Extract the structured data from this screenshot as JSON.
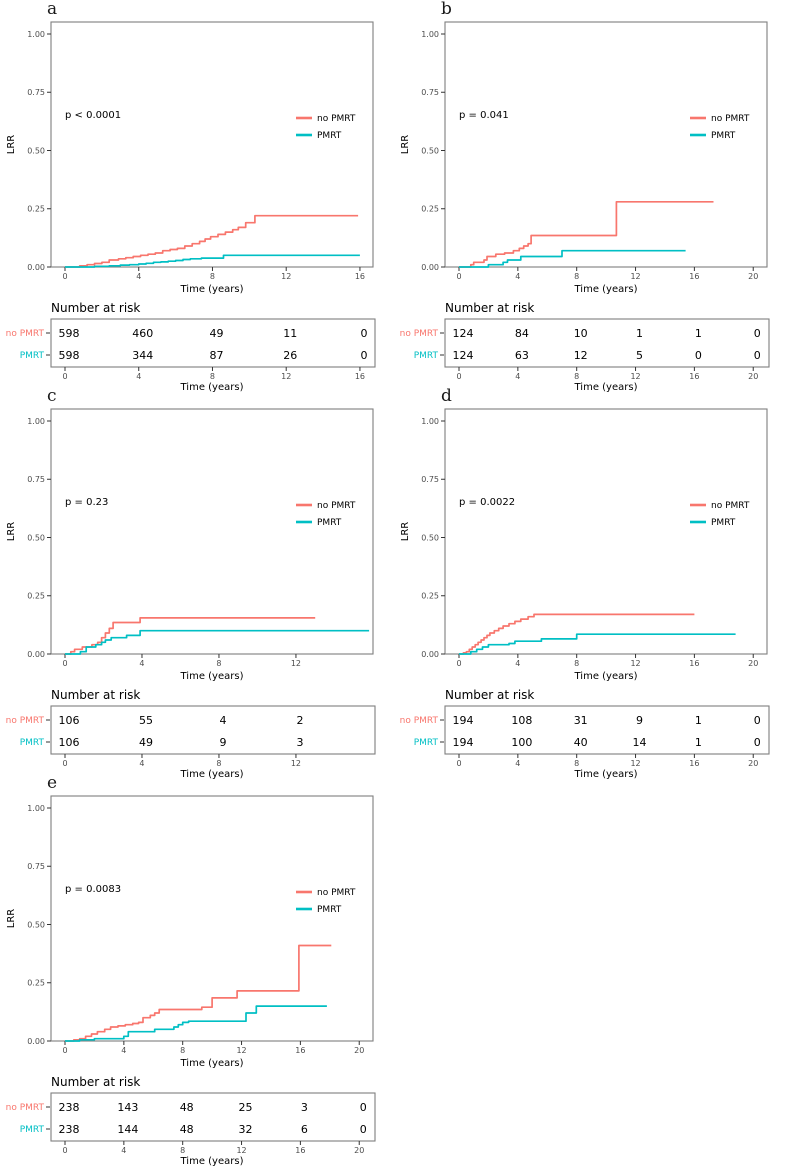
{
  "figure": {
    "description": "Cumulative incidence of locoregional recurrence (LRR) by PMRT status, five subgroup panels with number-at-risk tables",
    "colors": {
      "no_pmrt": "#F8766D",
      "pmrt": "#00BFC4",
      "axis_text": "#4d4d4d",
      "panel_border": "#7f7f7f",
      "text": "#000000"
    }
  },
  "chart_data": [
    {
      "label": "a",
      "type": "line",
      "p_value": "p < 0.0001",
      "xlabel": "Time (years)",
      "ylabel": "LRR",
      "ylim": [
        0,
        1
      ],
      "yticks": [
        0,
        0.25,
        0.5,
        0.75,
        1.0
      ],
      "xticks": [
        0,
        4,
        8,
        12,
        16
      ],
      "xmax": 16.6,
      "legend_position": "right-middle",
      "grid": false,
      "series": [
        {
          "name": "no PMRT",
          "color": "#F8766D",
          "points": [
            [
              0,
              0
            ],
            [
              0.8,
              0.005
            ],
            [
              1.2,
              0.01
            ],
            [
              1.6,
              0.015
            ],
            [
              2,
              0.02
            ],
            [
              2.4,
              0.03
            ],
            [
              2.9,
              0.035
            ],
            [
              3.3,
              0.04
            ],
            [
              3.7,
              0.045
            ],
            [
              4.1,
              0.05
            ],
            [
              4.5,
              0.055
            ],
            [
              4.9,
              0.06
            ],
            [
              5.3,
              0.07
            ],
            [
              5.7,
              0.075
            ],
            [
              6.1,
              0.08
            ],
            [
              6.5,
              0.09
            ],
            [
              6.9,
              0.1
            ],
            [
              7.3,
              0.11
            ],
            [
              7.6,
              0.12
            ],
            [
              7.9,
              0.13
            ],
            [
              8.3,
              0.14
            ],
            [
              8.7,
              0.15
            ],
            [
              9.1,
              0.16
            ],
            [
              9.4,
              0.17
            ],
            [
              9.8,
              0.19
            ],
            [
              10.3,
              0.22
            ],
            [
              15.9,
              0.22
            ]
          ]
        },
        {
          "name": "PMRT",
          "color": "#00BFC4",
          "points": [
            [
              0,
              0
            ],
            [
              1.6,
              0.003
            ],
            [
              2.4,
              0.005
            ],
            [
              3,
              0.008
            ],
            [
              3.5,
              0.01
            ],
            [
              4,
              0.013
            ],
            [
              4.4,
              0.016
            ],
            [
              4.8,
              0.02
            ],
            [
              5.2,
              0.022
            ],
            [
              5.6,
              0.025
            ],
            [
              6,
              0.028
            ],
            [
              6.4,
              0.032
            ],
            [
              6.8,
              0.035
            ],
            [
              7.4,
              0.038
            ],
            [
              8.6,
              0.05
            ],
            [
              16,
              0.05
            ]
          ]
        }
      ],
      "risk_table": {
        "title": "Number at risk",
        "xlabel": "Time (years)",
        "ticks": [
          0,
          4,
          8,
          12,
          16
        ],
        "rows": [
          {
            "label": "no PMRT",
            "color": "#F8766D",
            "values": [
              "598",
              "460",
              "49",
              "11",
              "0"
            ]
          },
          {
            "label": "PMRT",
            "color": "#00BFC4",
            "values": [
              "598",
              "344",
              "87",
              "26",
              "0"
            ]
          }
        ]
      }
    },
    {
      "label": "b",
      "type": "line",
      "p_value": "p = 0.041",
      "xlabel": "Time (years)",
      "ylabel": "LRR",
      "ylim": [
        0,
        1
      ],
      "yticks": [
        0,
        0.25,
        0.5,
        0.75,
        1.0
      ],
      "xticks": [
        0,
        4,
        8,
        12,
        16,
        20
      ],
      "xmax": 20.8,
      "legend_position": "right-middle",
      "grid": false,
      "series": [
        {
          "name": "no PMRT",
          "color": "#F8766D",
          "points": [
            [
              0,
              0
            ],
            [
              0.8,
              0.01
            ],
            [
              1,
              0.02
            ],
            [
              1.7,
              0.03
            ],
            [
              1.9,
              0.045
            ],
            [
              2.5,
              0.055
            ],
            [
              3.1,
              0.06
            ],
            [
              3.7,
              0.07
            ],
            [
              4.1,
              0.08
            ],
            [
              4.4,
              0.09
            ],
            [
              4.7,
              0.1
            ],
            [
              4.9,
              0.135
            ],
            [
              10.7,
              0.28
            ],
            [
              17.3,
              0.28
            ]
          ]
        },
        {
          "name": "PMRT",
          "color": "#00BFC4",
          "points": [
            [
              0,
              0
            ],
            [
              2,
              0.01
            ],
            [
              3,
              0.02
            ],
            [
              3.3,
              0.03
            ],
            [
              4.2,
              0.045
            ],
            [
              7,
              0.07
            ],
            [
              15.4,
              0.07
            ]
          ]
        }
      ],
      "risk_table": {
        "title": "Number at risk",
        "xlabel": "Time (years)",
        "ticks": [
          0,
          4,
          8,
          12,
          16,
          20
        ],
        "rows": [
          {
            "label": "no PMRT",
            "color": "#F8766D",
            "values": [
              "124",
              "84",
              "10",
              "1",
              "1",
              "0"
            ]
          },
          {
            "label": "PMRT",
            "color": "#00BFC4",
            "values": [
              "124",
              "63",
              "12",
              "5",
              "0",
              "0"
            ]
          }
        ]
      }
    },
    {
      "label": "c",
      "type": "line",
      "p_value": "p = 0.23",
      "xlabel": "Time (years)",
      "ylabel": "LRR",
      "ylim": [
        0,
        1
      ],
      "yticks": [
        0,
        0.25,
        0.5,
        0.75,
        1.0
      ],
      "xticks": [
        0,
        4,
        8,
        12
      ],
      "xmax": 15.9,
      "legend_position": "right-middle",
      "grid": false,
      "series": [
        {
          "name": "no PMRT",
          "color": "#F8766D",
          "points": [
            [
              0,
              0
            ],
            [
              0.3,
              0.01
            ],
            [
              0.5,
              0.02
            ],
            [
              0.9,
              0.03
            ],
            [
              1.4,
              0.04
            ],
            [
              1.7,
              0.05
            ],
            [
              1.9,
              0.07
            ],
            [
              2.1,
              0.09
            ],
            [
              2.3,
              0.11
            ],
            [
              2.5,
              0.135
            ],
            [
              3.9,
              0.155
            ],
            [
              13,
              0.155
            ]
          ]
        },
        {
          "name": "PMRT",
          "color": "#00BFC4",
          "points": [
            [
              0,
              0
            ],
            [
              0.8,
              0.01
            ],
            [
              1.1,
              0.03
            ],
            [
              1.6,
              0.04
            ],
            [
              1.9,
              0.05
            ],
            [
              2.1,
              0.06
            ],
            [
              2.4,
              0.07
            ],
            [
              3.2,
              0.08
            ],
            [
              3.9,
              0.1
            ],
            [
              15.8,
              0.1
            ]
          ]
        }
      ],
      "risk_table": {
        "title": "Number at risk",
        "xlabel": "Time (years)",
        "ticks": [
          0,
          4,
          8,
          12
        ],
        "rows": [
          {
            "label": "no PMRT",
            "color": "#F8766D",
            "values": [
              "106",
              "55",
              "4",
              "2"
            ]
          },
          {
            "label": "PMRT",
            "color": "#00BFC4",
            "values": [
              "106",
              "49",
              "9",
              "3"
            ]
          }
        ]
      }
    },
    {
      "label": "d",
      "type": "line",
      "p_value": "p = 0.0022",
      "xlabel": "Time (years)",
      "ylabel": "LRR",
      "ylim": [
        0,
        1
      ],
      "yticks": [
        0,
        0.25,
        0.5,
        0.75,
        1.0
      ],
      "xticks": [
        0,
        4,
        8,
        12,
        16,
        20
      ],
      "xmax": 20.8,
      "legend_position": "right-middle",
      "grid": false,
      "series": [
        {
          "name": "no PMRT",
          "color": "#F8766D",
          "points": [
            [
              0,
              0
            ],
            [
              0.3,
              0.005
            ],
            [
              0.5,
              0.01
            ],
            [
              0.7,
              0.02
            ],
            [
              0.9,
              0.03
            ],
            [
              1.1,
              0.04
            ],
            [
              1.3,
              0.05
            ],
            [
              1.5,
              0.06
            ],
            [
              1.7,
              0.07
            ],
            [
              1.9,
              0.08
            ],
            [
              2.1,
              0.09
            ],
            [
              2.4,
              0.1
            ],
            [
              2.7,
              0.11
            ],
            [
              3,
              0.12
            ],
            [
              3.4,
              0.13
            ],
            [
              3.8,
              0.14
            ],
            [
              4.2,
              0.15
            ],
            [
              4.7,
              0.16
            ],
            [
              5.1,
              0.17
            ],
            [
              16,
              0.17
            ]
          ]
        },
        {
          "name": "PMRT",
          "color": "#00BFC4",
          "points": [
            [
              0,
              0
            ],
            [
              0.8,
              0.01
            ],
            [
              1.2,
              0.02
            ],
            [
              1.6,
              0.03
            ],
            [
              2,
              0.04
            ],
            [
              3.4,
              0.045
            ],
            [
              3.8,
              0.055
            ],
            [
              5.6,
              0.065
            ],
            [
              8,
              0.085
            ],
            [
              18.8,
              0.085
            ]
          ]
        }
      ],
      "risk_table": {
        "title": "Number at risk",
        "xlabel": "Time (years)",
        "ticks": [
          0,
          4,
          8,
          12,
          16,
          20
        ],
        "rows": [
          {
            "label": "no PMRT",
            "color": "#F8766D",
            "values": [
              "194",
              "108",
              "31",
              "9",
              "1",
              "0"
            ]
          },
          {
            "label": "PMRT",
            "color": "#00BFC4",
            "values": [
              "194",
              "100",
              "40",
              "14",
              "1",
              "0"
            ]
          }
        ]
      }
    },
    {
      "label": "e",
      "type": "line",
      "p_value": "p = 0.0083",
      "xlabel": "Time (years)",
      "ylabel": "LRR",
      "ylim": [
        0,
        1
      ],
      "yticks": [
        0,
        0.25,
        0.5,
        0.75,
        1.0
      ],
      "xticks": [
        0,
        4,
        8,
        12,
        16,
        20
      ],
      "xmax": 20.8,
      "legend_position": "right-middle",
      "grid": false,
      "series": [
        {
          "name": "no PMRT",
          "color": "#F8766D",
          "points": [
            [
              0,
              0
            ],
            [
              0.6,
              0.005
            ],
            [
              1,
              0.01
            ],
            [
              1.4,
              0.02
            ],
            [
              1.8,
              0.03
            ],
            [
              2.2,
              0.04
            ],
            [
              2.7,
              0.05
            ],
            [
              3.1,
              0.06
            ],
            [
              3.6,
              0.065
            ],
            [
              4.1,
              0.07
            ],
            [
              4.6,
              0.075
            ],
            [
              5,
              0.08
            ],
            [
              5.3,
              0.1
            ],
            [
              5.8,
              0.11
            ],
            [
              6.1,
              0.12
            ],
            [
              6.4,
              0.135
            ],
            [
              9.3,
              0.145
            ],
            [
              10,
              0.185
            ],
            [
              11.7,
              0.215
            ],
            [
              15.9,
              0.41
            ],
            [
              18.1,
              0.41
            ]
          ]
        },
        {
          "name": "PMRT",
          "color": "#00BFC4",
          "points": [
            [
              0,
              0
            ],
            [
              1,
              0.005
            ],
            [
              2,
              0.01
            ],
            [
              4,
              0.02
            ],
            [
              4.3,
              0.04
            ],
            [
              6.1,
              0.05
            ],
            [
              7.4,
              0.06
            ],
            [
              7.7,
              0.07
            ],
            [
              8,
              0.08
            ],
            [
              8.4,
              0.085
            ],
            [
              12.3,
              0.12
            ],
            [
              13,
              0.15
            ],
            [
              17.8,
              0.15
            ]
          ]
        }
      ],
      "risk_table": {
        "title": "Number at risk",
        "xlabel": "Time (years)",
        "ticks": [
          0,
          4,
          8,
          12,
          16,
          20
        ],
        "rows": [
          {
            "label": "no PMRT",
            "color": "#F8766D",
            "values": [
              "238",
              "143",
              "48",
              "25",
              "3",
              "0"
            ]
          },
          {
            "label": "PMRT",
            "color": "#00BFC4",
            "values": [
              "238",
              "144",
              "48",
              "32",
              "6",
              "0"
            ]
          }
        ]
      }
    }
  ]
}
